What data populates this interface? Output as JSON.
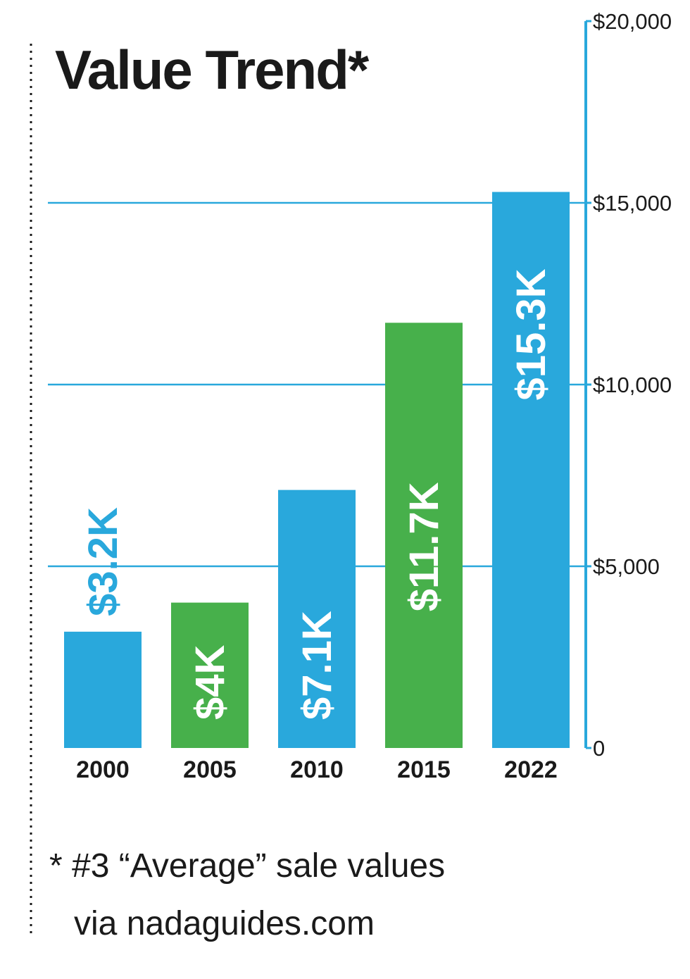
{
  "chart_data": {
    "type": "bar",
    "title": "Value Trend*",
    "categories": [
      "2000",
      "2005",
      "2010",
      "2015",
      "2022"
    ],
    "values": [
      3200,
      4000,
      7100,
      11700,
      15300
    ],
    "data_labels": [
      "$3.2K",
      "$4K",
      "$7.1K",
      "$11.7K",
      "$15.3K"
    ],
    "bar_colors": [
      "#29a8dc",
      "#47b04b",
      "#29a8dc",
      "#47b04b",
      "#29a8dc"
    ],
    "label_colors": [
      "#29a8dc",
      "#ffffff",
      "#ffffff",
      "#ffffff",
      "#ffffff"
    ],
    "ylim": [
      0,
      20000
    ],
    "yticks": [
      0,
      5000,
      10000,
      15000,
      20000
    ],
    "ytick_labels": [
      "0",
      "$5,000",
      "$10,000",
      "$15,000",
      "$20,000"
    ],
    "y_axis_position": "right",
    "grid": true,
    "axis_color": "#29a8dc",
    "footnote_lines": [
      "* #3 “Average” sale values",
      "via nadaguides.com"
    ]
  }
}
